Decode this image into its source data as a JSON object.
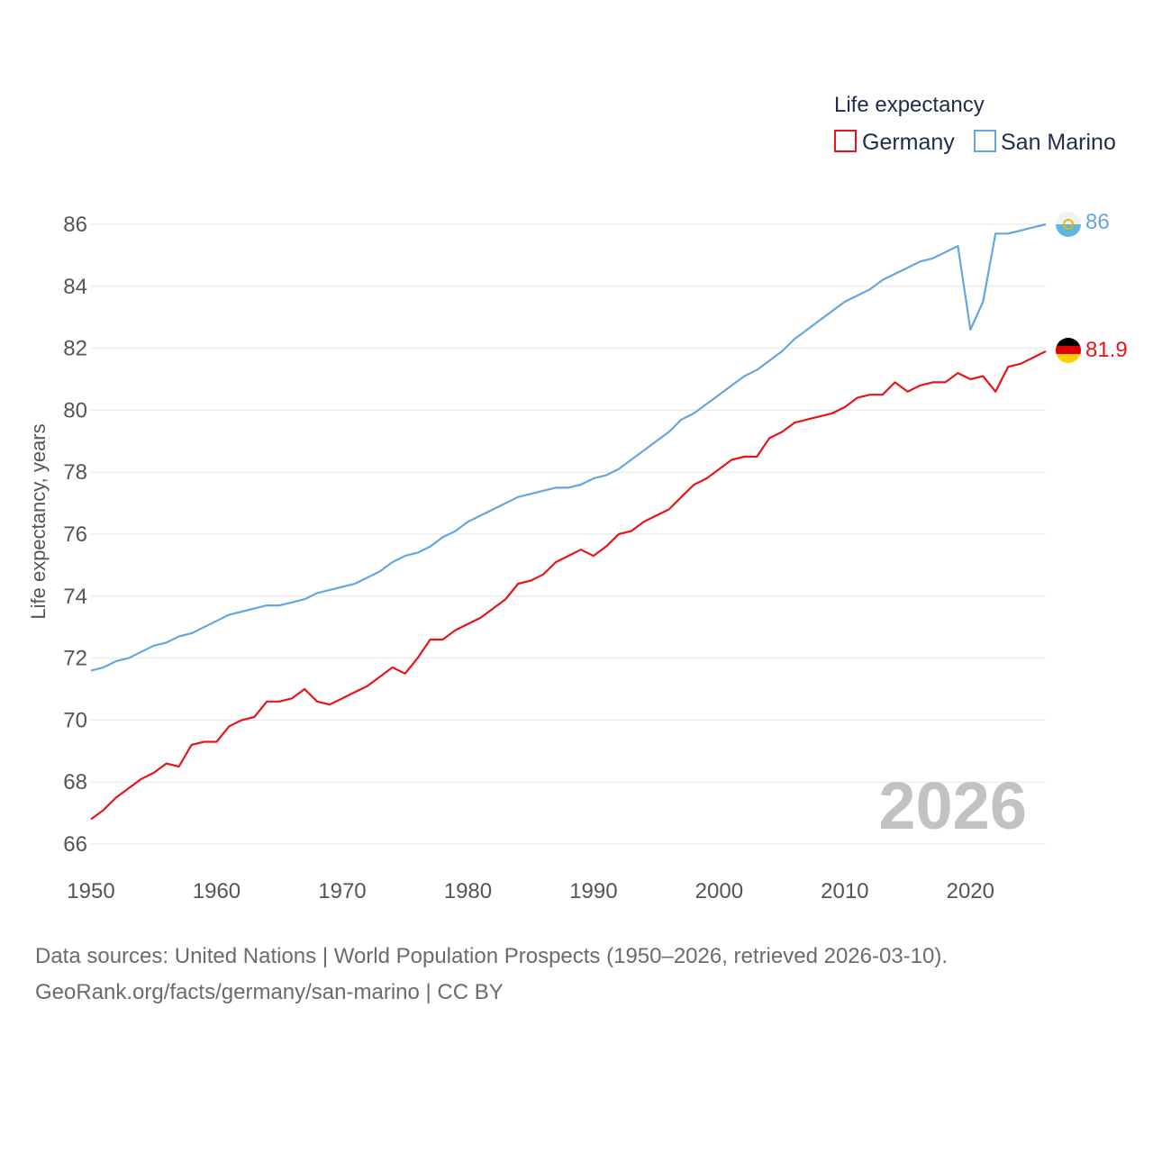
{
  "chart_data": {
    "type": "line",
    "legend_title": "Life expectancy",
    "ylabel": "Life expectancy, years",
    "xlim": [
      1950,
      2026
    ],
    "ylim": [
      65.5,
      87
    ],
    "yticks": [
      66,
      68,
      70,
      72,
      74,
      76,
      78,
      80,
      82,
      84,
      86
    ],
    "xticks": [
      1950,
      1960,
      1970,
      1980,
      1990,
      2000,
      2010,
      2020
    ],
    "year_label": "2026",
    "x": [
      1950,
      1951,
      1952,
      1953,
      1954,
      1955,
      1956,
      1957,
      1958,
      1959,
      1960,
      1961,
      1962,
      1963,
      1964,
      1965,
      1966,
      1967,
      1968,
      1969,
      1970,
      1971,
      1972,
      1973,
      1974,
      1975,
      1976,
      1977,
      1978,
      1979,
      1980,
      1981,
      1982,
      1983,
      1984,
      1985,
      1986,
      1987,
      1988,
      1989,
      1990,
      1991,
      1992,
      1993,
      1994,
      1995,
      1996,
      1997,
      1998,
      1999,
      2000,
      2001,
      2002,
      2003,
      2004,
      2005,
      2006,
      2007,
      2008,
      2009,
      2010,
      2011,
      2012,
      2013,
      2014,
      2015,
      2016,
      2017,
      2018,
      2019,
      2020,
      2021,
      2022,
      2023,
      2024,
      2025,
      2026
    ],
    "series": [
      {
        "name": "Germany",
        "color": "#e8141b",
        "end_label": "81.9",
        "values": [
          66.8,
          67.1,
          67.5,
          67.8,
          68.1,
          68.3,
          68.6,
          68.5,
          69.2,
          69.3,
          69.3,
          69.8,
          70.0,
          70.1,
          70.6,
          70.6,
          70.7,
          71.0,
          70.6,
          70.5,
          70.7,
          70.9,
          71.1,
          71.4,
          71.7,
          71.5,
          72.0,
          72.6,
          72.6,
          72.9,
          73.1,
          73.3,
          73.6,
          73.9,
          74.4,
          74.5,
          74.7,
          75.1,
          75.3,
          75.5,
          75.3,
          75.6,
          76.0,
          76.1,
          76.4,
          76.6,
          76.8,
          77.2,
          77.6,
          77.8,
          78.1,
          78.4,
          78.5,
          78.5,
          79.1,
          79.3,
          79.6,
          79.7,
          79.8,
          79.9,
          80.1,
          80.4,
          80.5,
          80.5,
          80.9,
          80.6,
          80.8,
          80.9,
          80.9,
          81.2,
          81.0,
          81.1,
          80.6,
          81.4,
          81.5,
          81.7,
          81.9
        ]
      },
      {
        "name": "San Marino",
        "color": "#64a6e3",
        "end_label": "86",
        "values": [
          71.6,
          71.7,
          71.9,
          72.0,
          72.2,
          72.4,
          72.5,
          72.7,
          72.8,
          73.0,
          73.2,
          73.4,
          73.5,
          73.6,
          73.7,
          73.7,
          73.8,
          73.9,
          74.1,
          74.2,
          74.3,
          74.4,
          74.6,
          74.8,
          75.1,
          75.3,
          75.4,
          75.6,
          75.9,
          76.1,
          76.4,
          76.6,
          76.8,
          77.0,
          77.2,
          77.3,
          77.4,
          77.5,
          77.5,
          77.6,
          77.8,
          77.9,
          78.1,
          78.4,
          78.7,
          79.0,
          79.3,
          79.7,
          79.9,
          80.2,
          80.5,
          80.8,
          81.1,
          81.3,
          81.6,
          81.9,
          82.3,
          82.6,
          82.9,
          83.2,
          83.5,
          83.7,
          83.9,
          84.2,
          84.4,
          84.6,
          84.8,
          84.9,
          85.1,
          85.3,
          82.6,
          83.5,
          85.7,
          85.7,
          85.8,
          85.9,
          86.0
        ]
      }
    ]
  },
  "source": {
    "line1": "Data sources: United Nations | World Population Prospects (1950–2026, retrieved 2026-03-10).",
    "line2": "GeoRank.org/facts/germany/san-marino | CC BY"
  }
}
